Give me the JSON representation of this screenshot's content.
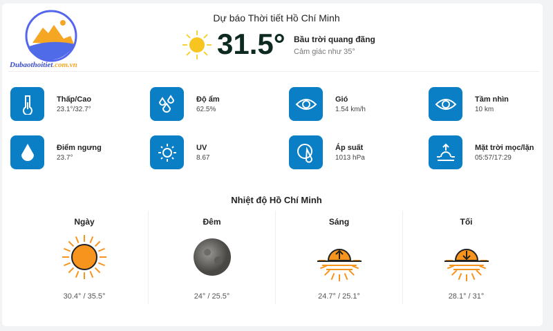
{
  "logo": {
    "text_main": "Dubaothoitiet",
    "text_domain": ".com.vn"
  },
  "header": {
    "title": "Dự báo Thời tiết Hồ Chí Minh",
    "temperature": "31.5°",
    "condition": "Bầu trời quang đãng",
    "feels_like": "Cảm giác như 35°"
  },
  "stats": [
    {
      "label": "Thấp/Cao",
      "value": "23.1°/32.7°",
      "icon": "thermometer-icon"
    },
    {
      "label": "Độ ẩm",
      "value": "62.5%",
      "icon": "droplets-icon"
    },
    {
      "label": "Gió",
      "value": "1.54 km/h",
      "icon": "eye-icon"
    },
    {
      "label": "Tầm nhìn",
      "value": "10 km",
      "icon": "eye-icon"
    },
    {
      "label": "Điểm ngưng",
      "value": "23.7°",
      "icon": "drop-icon"
    },
    {
      "label": "UV",
      "value": "8.67",
      "icon": "sun-icon"
    },
    {
      "label": "Áp suất",
      "value": "1013 hPa",
      "icon": "gauge-icon"
    },
    {
      "label": "Mặt trời mọc/lặn",
      "value": "05:57/17:29",
      "icon": "sunrise-icon"
    }
  ],
  "section": {
    "title": "Nhiệt độ Hồ Chí Minh",
    "periods": [
      {
        "label": "Ngày",
        "temps": "30.4° / 35.5°",
        "icon": "sun-icon"
      },
      {
        "label": "Đêm",
        "temps": "24° / 25.5°",
        "icon": "moon-icon"
      },
      {
        "label": "Sáng",
        "temps": "24.7° / 25.1°",
        "icon": "sunrise-icon"
      },
      {
        "label": "Tối",
        "temps": "28.1° / 31°",
        "icon": "sunset-icon"
      }
    ]
  },
  "colors": {
    "accent": "#0a7fc6",
    "sun": "#f7941d"
  }
}
